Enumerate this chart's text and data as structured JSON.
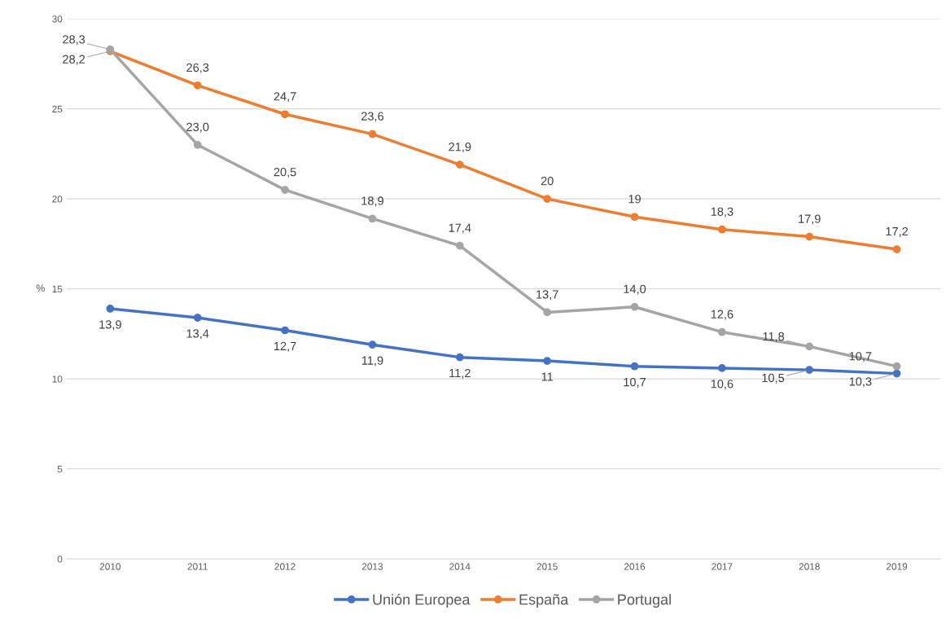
{
  "chart_data": {
    "type": "line",
    "ylabel": "%",
    "categories": [
      "2010",
      "2011",
      "2012",
      "2013",
      "2014",
      "2015",
      "2016",
      "2017",
      "2018",
      "2019"
    ],
    "series": [
      {
        "name": "Unión Europea",
        "color": "#4472c4",
        "values": [
          13.9,
          13.4,
          12.7,
          11.9,
          11.2,
          11,
          10.7,
          10.6,
          10.5,
          10.3
        ],
        "value_labels": [
          "13,9",
          "13,4",
          "12,7",
          "11,9",
          "11,2",
          "11",
          "10,7",
          "10,6",
          "10,5",
          "10,3"
        ]
      },
      {
        "name": "España",
        "color": "#ed7d31",
        "values": [
          28.2,
          26.3,
          24.7,
          23.6,
          21.9,
          20,
          19,
          18.3,
          17.9,
          17.2
        ],
        "value_labels": [
          "28,2",
          "26,3",
          "24,7",
          "23,6",
          "21,9",
          "20",
          "19",
          "18,3",
          "17,9",
          "17,2"
        ]
      },
      {
        "name": "Portugal",
        "color": "#a5a5a5",
        "values": [
          28.3,
          23.0,
          20.5,
          18.9,
          17.4,
          13.7,
          14.0,
          12.6,
          11.8,
          10.7
        ],
        "value_labels": [
          "28,3",
          "23,0",
          "20,5",
          "18,9",
          "17,4",
          "13,7",
          "14,0",
          "12,6",
          "11,8",
          "10,7"
        ]
      }
    ],
    "ylim": [
      0,
      30
    ],
    "yticks": [
      0,
      5,
      10,
      15,
      20,
      25,
      30
    ],
    "grid": "y",
    "legend": "bottom",
    "marker": "circle",
    "line_style": "solid"
  }
}
